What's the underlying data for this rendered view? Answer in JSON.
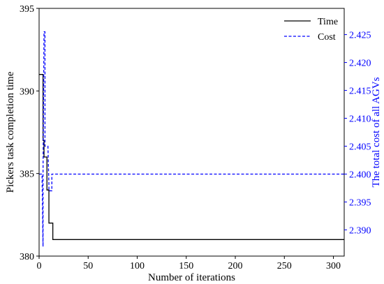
{
  "chart_data": {
    "type": "line",
    "xlabel": "Number of iterations",
    "ylabel": "Pickers task completion time",
    "y2label": "The total cost of all AGVs",
    "xlim": [
      0,
      311
    ],
    "ylim": [
      380,
      395
    ],
    "y2lim": [
      2.3853,
      2.4297
    ],
    "xticks": [
      0,
      50,
      100,
      150,
      200,
      250,
      300
    ],
    "yticks": [
      380,
      385,
      390,
      395
    ],
    "y2ticks": [
      2.39,
      2.395,
      2.4,
      2.405,
      2.41,
      2.415,
      2.42,
      2.425
    ],
    "legend_position": "top-right",
    "grid": false,
    "series": [
      {
        "name": "Time",
        "axis": "left",
        "color": "#000000",
        "style": "solid",
        "x": [
          0,
          4,
          4,
          5,
          5,
          8,
          8,
          10,
          10,
          12,
          12,
          14,
          14,
          311
        ],
        "y": [
          391,
          391,
          387,
          387,
          386,
          386,
          384,
          384,
          382,
          382,
          382,
          382,
          381,
          381
        ]
      },
      {
        "name": "Cost",
        "axis": "right",
        "color": "#0000ff",
        "style": "dashed",
        "x": [
          0,
          3,
          4,
          4,
          5,
          6,
          6,
          8,
          9,
          10,
          10,
          12,
          13,
          13,
          311
        ],
        "y": [
          2.4,
          2.4,
          2.387,
          2.4,
          2.4255,
          2.4255,
          2.405,
          2.405,
          2.405,
          2.398,
          2.397,
          2.397,
          2.397,
          2.4,
          2.4
        ]
      }
    ]
  }
}
